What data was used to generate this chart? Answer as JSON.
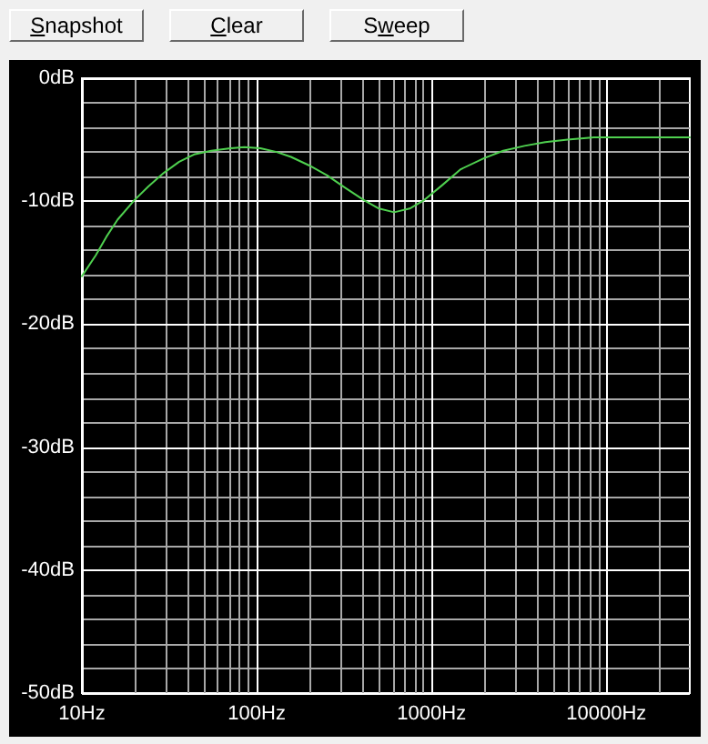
{
  "chart_data": {
    "type": "line",
    "annotations": [
      "Snapshot",
      "Clear",
      "Sweep"
    ],
    "x": [
      10,
      12,
      13.8,
      16,
      20,
      24,
      29.4,
      36,
      43.8,
      55,
      70.8,
      85,
      105,
      130,
      157,
      200,
      253,
      320,
      409,
      500,
      611,
      750,
      910,
      1150,
      1469,
      2000,
      2570,
      3400,
      4470,
      6000,
      8510,
      12000,
      20000,
      30000
    ],
    "series": [
      {
        "color": "#4fd04f",
        "values": [
          -16.1,
          -14.4,
          -12.9,
          -11.5,
          -9.9,
          -8.8,
          -7.7,
          -6.8,
          -6.2,
          -5.9,
          -5.7,
          -5.6,
          -5.7,
          -6,
          -6.4,
          -7.1,
          -7.9,
          -8.9,
          -9.9,
          -10.6,
          -10.9,
          -10.6,
          -9.9,
          -8.7,
          -7.4,
          -6.5,
          -5.9,
          -5.5,
          -5.2,
          -5,
          -4.8,
          -4.8,
          -4.8,
          -4.8
        ]
      }
    ],
    "xlim": [
      10,
      30000
    ],
    "ylim": [
      -50,
      0
    ],
    "xticks": [
      {
        "value": 10,
        "label": "10Hz"
      },
      {
        "value": 100,
        "label": "100Hz"
      },
      {
        "value": 1000,
        "label": "1000Hz"
      },
      {
        "value": 10000,
        "label": "10000Hz"
      }
    ],
    "yticks": [
      {
        "value": -50,
        "label": "-50dB"
      },
      {
        "value": -40,
        "label": "-40dB"
      },
      {
        "value": -30,
        "label": "-30dB"
      },
      {
        "value": -20,
        "label": "-20dB"
      },
      {
        "value": -10,
        "label": "-10dB"
      },
      {
        "value": 0,
        "label": "0dB"
      }
    ],
    "log": "x",
    "grid": true,
    "marker": "none",
    "line_style": "solid"
  }
}
